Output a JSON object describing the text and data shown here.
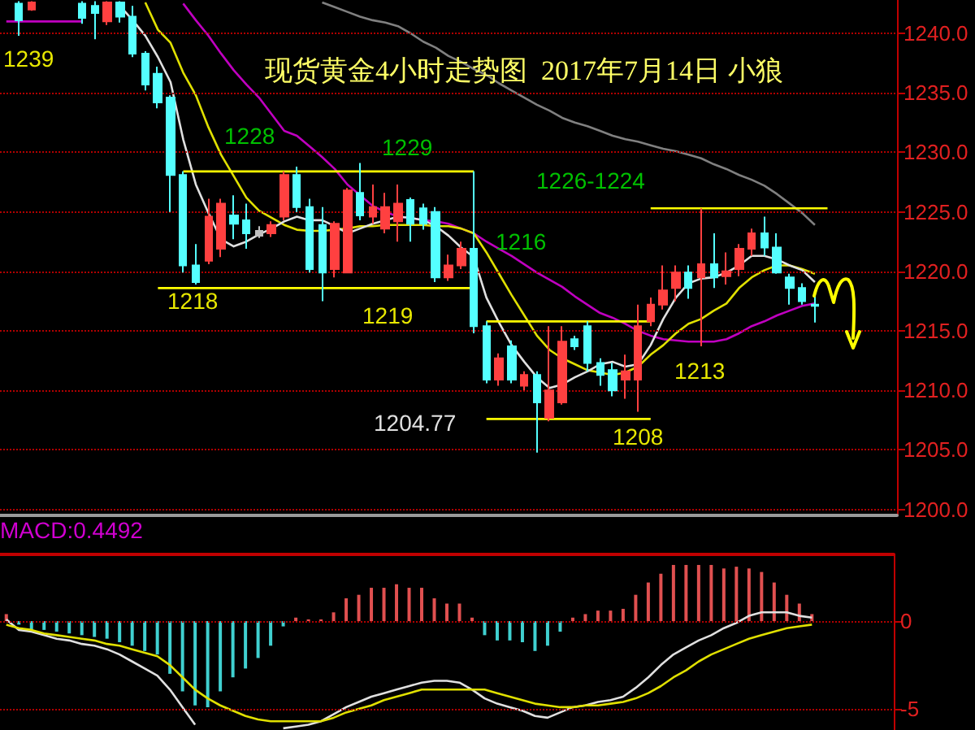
{
  "chart_data": [
    {
      "type": "candlestick",
      "title": "现货黄金4小时走势图  2017年7月14日 小狼",
      "categories": [
        null,
        null,
        null,
        null,
        null,
        null,
        null,
        null,
        null,
        null,
        null,
        null,
        null,
        null,
        null,
        null,
        null,
        null,
        null,
        null,
        null,
        null,
        null,
        null,
        null,
        null,
        null,
        null,
        null,
        null,
        null,
        null,
        null,
        null,
        null,
        null,
        null,
        null,
        null,
        null,
        null,
        null,
        null,
        null,
        null,
        null,
        null,
        null,
        null,
        null,
        null,
        null,
        null,
        null,
        null,
        null,
        null,
        null,
        null,
        null,
        null,
        null,
        null,
        null,
        null,
        null,
        null,
        null,
        null,
        null,
        null
      ],
      "ohlc": [
        null,
        [
          1242.5,
          1242.7,
          1239.8,
          1241.1
        ],
        [
          1242.0,
          1242.7,
          1241.9,
          1242.6
        ],
        null,
        null,
        null,
        [
          1242.5,
          1242.7,
          1240.8,
          1241.3
        ],
        [
          1242.3,
          1242.7,
          1239.5,
          1241.7
        ],
        [
          1241.0,
          1242.7,
          1240.7,
          1242.6
        ],
        [
          1242.6,
          1242.7,
          1240.9,
          1241.4
        ],
        [
          1241.4,
          1242.3,
          1238.0,
          1238.3
        ],
        [
          1238.3,
          1238.5,
          1235.2,
          1235.7
        ],
        [
          1236.6,
          1237.2,
          1233.7,
          1234.2
        ],
        [
          1234.6,
          1234.8,
          1225.0,
          1228.1
        ],
        [
          1228.1,
          1228.4,
          1219.9,
          1220.5
        ],
        [
          1220.5,
          1222.3,
          1218.9,
          1219.1
        ],
        [
          1220.9,
          1226.1,
          1220.6,
          1224.6
        ],
        [
          1221.9,
          1226.1,
          1221.2,
          1225.7
        ],
        [
          1224.7,
          1226.4,
          1222.7,
          1224.0
        ],
        [
          1224.3,
          1225.7,
          1221.9,
          1223.2
        ],
        [
          1223.4,
          1223.8,
          1222.8,
          1223.0
        ],
        [
          1223.2,
          1224.2,
          1222.9,
          1223.9
        ],
        [
          1224.6,
          1228.4,
          1224.3,
          1228.1
        ],
        [
          1228.1,
          1228.8,
          1225.0,
          1225.4
        ],
        [
          1225.4,
          1226.1,
          1219.9,
          1220.2
        ],
        [
          1223.9,
          1225.4,
          1217.5,
          1219.9
        ],
        [
          1220.2,
          1224.2,
          1219.5,
          1224.0
        ],
        [
          1219.9,
          1227.0,
          1219.9,
          1226.8
        ],
        [
          1226.6,
          1229.1,
          1224.3,
          1224.7
        ],
        [
          1224.6,
          1227.3,
          1224.0,
          1225.4
        ],
        [
          1223.6,
          1226.6,
          1223.2,
          1225.4
        ],
        [
          1224.2,
          1227.3,
          1222.5,
          1225.7
        ],
        [
          1226.0,
          1226.2,
          1222.5,
          1224.0
        ],
        [
          1225.3,
          1225.7,
          1223.5,
          1224.0
        ],
        [
          1225.0,
          1225.4,
          1219.1,
          1219.5
        ],
        [
          1219.5,
          1221.4,
          1219.2,
          1220.5
        ],
        [
          1220.5,
          1222.5,
          1220.2,
          1221.9
        ],
        [
          1221.9,
          1228.4,
          1214.8,
          1215.4
        ],
        [
          1215.4,
          1215.8,
          1210.6,
          1210.9
        ],
        [
          1210.9,
          1213.1,
          1210.4,
          1212.7
        ],
        [
          1213.7,
          1214.2,
          1210.6,
          1210.9
        ],
        [
          1210.4,
          1211.6,
          1210.0,
          1211.3
        ],
        [
          1211.3,
          1211.6,
          1204.77,
          1209.0
        ],
        [
          1207.7,
          1215.4,
          1207.4,
          1210.0
        ],
        [
          1209.0,
          1215.4,
          1208.8,
          1214.1
        ],
        [
          1214.3,
          1214.6,
          1213.4,
          1213.7
        ],
        [
          1215.4,
          1215.8,
          1211.6,
          1212.3
        ],
        [
          1212.3,
          1212.7,
          1210.4,
          1211.3
        ],
        [
          1211.7,
          1212.3,
          1209.5,
          1210.0
        ],
        [
          1210.9,
          1213.0,
          1209.3,
          1211.6
        ],
        [
          1210.9,
          1217.2,
          1208.2,
          1215.4
        ],
        [
          1215.8,
          1217.8,
          1215.4,
          1217.2
        ],
        [
          1217.2,
          1220.5,
          1216.8,
          1218.4
        ],
        [
          1218.6,
          1220.5,
          1217.5,
          1219.9
        ],
        [
          1219.9,
          1220.5,
          1217.7,
          1218.6
        ],
        [
          1219.5,
          1225.3,
          1213.7,
          1220.6
        ],
        [
          1220.6,
          1223.2,
          1218.6,
          1219.5
        ],
        [
          1219.6,
          1221.6,
          1218.9,
          1220.0
        ],
        [
          1220.2,
          1222.3,
          1219.6,
          1221.9
        ],
        [
          1221.9,
          1223.6,
          1221.3,
          1223.2
        ],
        [
          1223.2,
          1224.6,
          1221.3,
          1222.0
        ],
        [
          1222.0,
          1223.2,
          1219.8,
          1219.9
        ],
        [
          1219.5,
          1219.8,
          1217.2,
          1218.6
        ],
        [
          1218.6,
          1219.0,
          1217.2,
          1217.5
        ],
        [
          1217.2,
          1217.9,
          1215.7,
          1217.1
        ],
        null,
        null,
        null,
        null,
        null,
        null
      ],
      "colors": [
        null,
        "#54ffff",
        "#ff4040",
        null,
        null,
        null,
        "#54ffff",
        "#54ffff",
        "#ff4040",
        "#54ffff",
        "#54ffff",
        "#54ffff",
        "#54ffff",
        "#54ffff",
        "#54ffff",
        "#54ffff",
        "#ff4040",
        "#ff4040",
        "#54ffff",
        "#54ffff",
        "#c0c0c0",
        "#ff4040",
        "#ff4040",
        "#54ffff",
        "#54ffff",
        "#54ffff",
        "#ff4040",
        "#ff4040",
        "#54ffff",
        "#ff4040",
        "#ff4040",
        "#ff4040",
        "#54ffff",
        "#54ffff",
        "#54ffff",
        "#ff4040",
        "#ff4040",
        "#54ffff",
        "#54ffff",
        "#ff4040",
        "#54ffff",
        "#ff4040",
        "#54ffff",
        "#ff4040",
        "#ff4040",
        "#54ffff",
        "#54ffff",
        "#54ffff",
        "#54ffff",
        "#ff4040",
        "#ff4040",
        "#ff4040",
        "#ff4040",
        "#ff4040",
        "#54ffff",
        "#ff4040",
        "#54ffff",
        "#ff4040",
        "#ff4040",
        "#ff4040",
        "#54ffff",
        "#54ffff",
        "#54ffff",
        "#54ffff",
        "#54ffff",
        null,
        null,
        null,
        null,
        null,
        null
      ],
      "series": [
        {
          "type": "line",
          "color": "#808080",
          "values": [
            null,
            null,
            null,
            null,
            null,
            null,
            null,
            null,
            null,
            null,
            null,
            null,
            null,
            null,
            null,
            null,
            null,
            null,
            null,
            null,
            null,
            null,
            null,
            null,
            null,
            1242.6,
            1242.2,
            1241.8,
            1241.4,
            1241.1,
            1240.9,
            1240.6,
            1240.0,
            1239.3,
            1238.8,
            1238.1,
            1237.6,
            1237.0,
            1236.5,
            1235.8,
            1235.2,
            1234.6,
            1234.0,
            1233.5,
            1232.9,
            1232.5,
            1232.2,
            1231.8,
            1231.4,
            1231.1,
            1230.9,
            1230.6,
            1230.3,
            1230.1,
            1229.8,
            1229.5,
            1229.0,
            1228.6,
            1228.1,
            1227.7,
            1227.2,
            1226.5,
            1225.7,
            1224.9,
            1223.9,
            null,
            null,
            null,
            null,
            null,
            null
          ]
        },
        {
          "type": "line",
          "color": "#c000c0",
          "values": [
            null,
            null,
            null,
            null,
            null,
            null,
            null,
            null,
            null,
            null,
            null,
            null,
            null,
            null,
            1242.5,
            1241.1,
            1239.8,
            1238.3,
            1236.9,
            1235.7,
            1234.6,
            1233.2,
            1231.8,
            1231.4,
            1230.5,
            1229.6,
            1228.6,
            1227.3,
            1226.4,
            1225.5,
            1225.0,
            1224.6,
            1224.5,
            1224.3,
            1224.2,
            1224.0,
            1223.6,
            1223.2,
            1222.5,
            1221.9,
            1221.3,
            1220.6,
            1219.9,
            1219.3,
            1218.7,
            1217.9,
            1217.2,
            1216.5,
            1216.1,
            1215.6,
            1215.0,
            1214.6,
            1214.3,
            1214.2,
            1214.1,
            1214.1,
            1214.1,
            1214.3,
            1214.8,
            1215.4,
            1215.8,
            1216.3,
            1216.7,
            1217.1,
            1217.3,
            null,
            null,
            null,
            null,
            null,
            null
          ]
        },
        {
          "type": "line",
          "color": "#e0e000",
          "values": [
            null,
            null,
            null,
            null,
            null,
            null,
            null,
            null,
            null,
            null,
            null,
            1242.6,
            1240.3,
            1239.2,
            1236.7,
            1234.8,
            1232.1,
            1229.8,
            1228.0,
            1226.2,
            1225.1,
            1224.5,
            1223.9,
            1223.5,
            1223.4,
            1223.4,
            1223.5,
            1223.6,
            1223.8,
            1223.8,
            1223.9,
            1223.9,
            1223.9,
            1223.9,
            1223.8,
            1223.8,
            1223.6,
            1223.2,
            1221.6,
            1219.8,
            1218.0,
            1216.3,
            1214.6,
            1213.4,
            1212.7,
            1212.2,
            1211.7,
            1211.5,
            1211.3,
            1211.5,
            1212.0,
            1213.0,
            1213.8,
            1214.8,
            1215.6,
            1216.0,
            1216.7,
            1217.3,
            1218.6,
            1219.5,
            1220.1,
            1220.5,
            1220.5,
            1220.2,
            1219.8,
            null,
            null,
            null,
            null,
            null,
            null
          ]
        },
        {
          "type": "line",
          "color": "#e0e0e0",
          "values": [
            null,
            null,
            null,
            null,
            null,
            null,
            null,
            null,
            null,
            1242.3,
            1241.1,
            1239.8,
            1238.0,
            1235.9,
            1231.1,
            1227.3,
            1224.9,
            1222.7,
            1222.1,
            1222.5,
            1223.1,
            1223.6,
            1224.2,
            1224.6,
            1224.3,
            1224.3,
            1223.8,
            1223.2,
            1223.6,
            1224.0,
            1224.3,
            1224.6,
            1224.5,
            1224.3,
            1223.8,
            1223.0,
            1222.0,
            1221.2,
            1217.8,
            1215.7,
            1213.8,
            1212.4,
            1211.1,
            1210.2,
            1210.5,
            1211.1,
            1211.6,
            1212.2,
            1212.4,
            1212.0,
            1212.2,
            1213.8,
            1216.0,
            1217.8,
            1219.0,
            1219.4,
            1219.5,
            1219.9,
            1220.5,
            1221.3,
            1221.3,
            1221.0,
            1220.5,
            1220.1,
            1219.1,
            null,
            null,
            null,
            null,
            null,
            null
          ]
        },
        {
          "type": "line",
          "color": "#c000c0",
          "values": [
            1241.0,
            1241.0,
            1241.0,
            1241.0,
            1241.0,
            1241.0,
            1241.0,
            null,
            null,
            null,
            null,
            null,
            null,
            null,
            null,
            null,
            null,
            null,
            null,
            null,
            null,
            null,
            null,
            null,
            null,
            null,
            null,
            null,
            null,
            null,
            null,
            null,
            null,
            null,
            null,
            null,
            null,
            null,
            null,
            null,
            null,
            null,
            null,
            null,
            null,
            null,
            null,
            null,
            null,
            null,
            null,
            null,
            null,
            null,
            null,
            null,
            null,
            null,
            null,
            null,
            null,
            null,
            null,
            null,
            null,
            null,
            null,
            null,
            null,
            null,
            null
          ]
        },
        {
          "type": "line",
          "color": "#ffff00",
          "values": [
            null,
            null,
            null,
            null,
            null,
            null,
            null,
            null,
            null,
            null,
            null,
            null,
            null,
            null,
            1228.4,
            1228.4,
            1228.4,
            1228.4,
            1228.4,
            1228.4,
            1228.4,
            1228.4,
            1228.4,
            1228.4,
            1228.4,
            1228.4,
            1228.4,
            1228.4,
            1228.4,
            1228.4,
            1228.4,
            1228.4,
            1228.4,
            1228.4,
            1228.4,
            1228.4,
            1228.4,
            1228.4,
            null,
            null,
            null,
            null,
            null,
            null,
            null,
            null,
            null,
            null,
            null,
            null,
            null,
            null,
            null,
            null,
            null,
            null,
            null,
            null,
            null,
            null,
            null,
            null,
            null,
            null,
            null,
            null,
            null,
            null,
            null,
            null,
            null
          ]
        },
        {
          "type": "line",
          "color": "#ffff00",
          "values": [
            null,
            null,
            null,
            null,
            null,
            null,
            null,
            null,
            null,
            null,
            null,
            null,
            1218.6,
            1218.6,
            1218.6,
            1218.6,
            1218.6,
            1218.6,
            1218.6,
            1218.6,
            1218.6,
            1218.6,
            1218.6,
            1218.6,
            1218.6,
            1218.6,
            1218.6,
            1218.6,
            1218.6,
            1218.6,
            1218.6,
            1218.6,
            1218.6,
            1218.6,
            1218.6,
            1218.6,
            1218.6,
            1218.6,
            null,
            null,
            null,
            null,
            null,
            null,
            null,
            null,
            null,
            null,
            null,
            null,
            null,
            null,
            null,
            null,
            null,
            null,
            null,
            null,
            null,
            null,
            null,
            null,
            null,
            null,
            null,
            null,
            null,
            null,
            null,
            null,
            null
          ]
        },
        {
          "type": "line",
          "color": "#ffff00",
          "values": [
            null,
            null,
            null,
            null,
            null,
            null,
            null,
            null,
            null,
            null,
            null,
            null,
            null,
            null,
            null,
            null,
            null,
            null,
            null,
            null,
            null,
            null,
            null,
            null,
            null,
            null,
            null,
            null,
            null,
            null,
            null,
            null,
            null,
            null,
            null,
            null,
            null,
            null,
            1215.8,
            1215.8,
            1215.8,
            1215.8,
            1215.8,
            1215.8,
            1215.8,
            1215.8,
            1215.8,
            1215.8,
            1215.8,
            1215.8,
            1215.8,
            1215.8,
            null,
            null,
            null,
            null,
            null,
            null,
            null,
            null,
            null,
            null,
            null,
            null,
            null,
            null,
            null,
            null,
            null,
            null,
            null
          ]
        },
        {
          "type": "line",
          "color": "#ffff00",
          "values": [
            null,
            null,
            null,
            null,
            null,
            null,
            null,
            null,
            null,
            null,
            null,
            null,
            null,
            null,
            null,
            null,
            null,
            null,
            null,
            null,
            null,
            null,
            null,
            null,
            null,
            null,
            null,
            null,
            null,
            null,
            null,
            null,
            null,
            null,
            null,
            null,
            null,
            null,
            1207.6,
            1207.6,
            1207.6,
            1207.6,
            1207.6,
            1207.6,
            1207.6,
            1207.6,
            1207.6,
            1207.6,
            1207.6,
            1207.6,
            1207.6,
            1207.6,
            null,
            null,
            null,
            null,
            null,
            null,
            null,
            null,
            null,
            null,
            null,
            null,
            null,
            null,
            null,
            null,
            null,
            null,
            null
          ]
        },
        {
          "type": "line",
          "color": "#ffff00",
          "values": [
            null,
            null,
            null,
            null,
            null,
            null,
            null,
            null,
            null,
            null,
            null,
            null,
            null,
            null,
            null,
            null,
            null,
            null,
            null,
            null,
            null,
            null,
            null,
            null,
            null,
            null,
            null,
            null,
            null,
            null,
            null,
            null,
            null,
            null,
            null,
            null,
            null,
            null,
            null,
            null,
            null,
            null,
            null,
            null,
            null,
            null,
            null,
            null,
            null,
            null,
            null,
            1225.3,
            1225.3,
            1225.3,
            1225.3,
            1225.3,
            1225.3,
            1225.3,
            1225.3,
            1225.3,
            1225.3,
            1225.3,
            1225.3,
            1225.3,
            1225.3,
            1225.3,
            null,
            null,
            null,
            null,
            null
          ]
        }
      ],
      "ylim": [
        1199.5,
        1242.8
      ],
      "yticks": [
        {
          "value": 1200,
          "label": "1200.0"
        },
        {
          "value": 1205,
          "label": "1205.0"
        },
        {
          "value": 1210,
          "label": "1210.0"
        },
        {
          "value": 1215,
          "label": "1215.0"
        },
        {
          "value": 1220,
          "label": "1220.0"
        },
        {
          "value": 1225,
          "label": "1225.0"
        },
        {
          "value": 1230,
          "label": "1230.0"
        },
        {
          "value": 1235,
          "label": "1235.0"
        },
        {
          "value": 1240,
          "label": "1240.0"
        }
      ],
      "grid": "y",
      "tick_labels": "y",
      "marker": "none",
      "annotations": [
        "1239",
        {
          "text": "1228",
          "y": 1228.4
        },
        {
          "text": "1229",
          "y": 1228.4
        },
        {
          "text": "1218",
          "y": 1218.6
        },
        {
          "text": "1219",
          "y": 1218.6
        },
        {
          "text": "1216",
          "y": 1215.8
        },
        {
          "text": "1213",
          "y": 1213.7
        },
        {
          "text": "1208",
          "y": 1207.6
        },
        "1204.77",
        "1226-1224"
      ]
    },
    {
      "type": "bar",
      "categories": [
        null,
        null,
        null,
        null,
        null,
        null,
        null,
        null,
        null,
        null,
        null,
        null,
        null,
        null,
        null,
        null,
        null,
        null,
        null,
        null,
        null,
        null,
        null,
        null,
        null,
        null,
        null,
        null,
        null,
        null,
        null,
        null,
        null,
        null,
        null,
        null,
        null,
        null,
        null,
        null,
        null,
        null,
        null,
        null,
        null,
        null,
        null,
        null,
        null,
        null,
        null,
        null,
        null,
        null,
        null,
        null,
        null,
        null,
        null,
        null,
        null,
        null,
        null,
        null,
        null,
        null,
        null,
        null,
        null,
        null,
        null
      ],
      "series": [
        {
          "type": "bar",
          "values": [
            0.4,
            -0.2,
            -0.5,
            -0.5,
            -0.6,
            -0.7,
            -0.8,
            -0.9,
            -1.0,
            -1.2,
            -1.4,
            -1.7,
            -1.9,
            -3.0,
            -4.0,
            -4.8,
            -4.9,
            -4.0,
            -3.2,
            -2.7,
            -2.1,
            -1.4,
            -0.3,
            0.2,
            0.1,
            0.1,
            0.5,
            1.3,
            1.5,
            1.9,
            1.9,
            2.1,
            1.9,
            1.9,
            1.3,
            1.0,
            1.0,
            0.2,
            -0.8,
            -1.1,
            -1.1,
            -1.2,
            -1.7,
            -1.4,
            -0.6,
            0.2,
            0.4,
            0.6,
            0.6,
            0.7,
            1.5,
            2.2,
            2.7,
            3.2,
            3.2,
            3.2,
            3.2,
            3.0,
            3.1,
            3.0,
            2.8,
            2.2,
            1.5,
            1.0,
            0.4,
            null,
            null,
            null,
            null,
            null,
            null
          ],
          "colors": [
            "#e05050",
            "#40d0d0",
            "#40d0d0",
            "#40d0d0",
            "#40d0d0",
            "#40d0d0",
            "#40d0d0",
            "#40d0d0",
            "#40d0d0",
            "#40d0d0",
            "#40d0d0",
            "#40d0d0",
            "#40d0d0",
            "#40d0d0",
            "#40d0d0",
            "#40d0d0",
            "#40d0d0",
            "#40d0d0",
            "#40d0d0",
            "#40d0d0",
            "#40d0d0",
            "#40d0d0",
            "#40d0d0",
            "#e05050",
            "#e05050",
            "#e05050",
            "#e05050",
            "#e05050",
            "#e05050",
            "#e05050",
            "#e05050",
            "#e05050",
            "#e05050",
            "#e05050",
            "#e05050",
            "#e05050",
            "#e05050",
            "#e05050",
            "#40d0d0",
            "#40d0d0",
            "#40d0d0",
            "#40d0d0",
            "#40d0d0",
            "#40d0d0",
            "#40d0d0",
            "#e05050",
            "#e05050",
            "#e05050",
            "#e05050",
            "#e05050",
            "#e05050",
            "#e05050",
            "#e05050",
            "#e05050",
            "#e05050",
            "#e05050",
            "#e05050",
            "#e05050",
            "#e05050",
            "#e05050",
            "#e05050",
            "#e05050",
            "#e05050",
            "#e05050",
            "#e05050",
            null,
            null,
            null,
            null,
            null,
            null
          ]
        },
        {
          "type": "line",
          "color": "#e0e0e0",
          "values": [
            0.1,
            -0.5,
            -0.6,
            -0.8,
            -1.0,
            -1.1,
            -1.3,
            -1.4,
            -1.6,
            -1.9,
            -2.3,
            -2.7,
            -3.1,
            -3.9,
            -4.9,
            -5.9,
            null,
            null,
            null,
            null,
            null,
            null,
            -6.1,
            -6.0,
            -5.9,
            -5.7,
            -5.3,
            -4.9,
            -4.6,
            -4.3,
            -4.1,
            -3.9,
            -3.7,
            -3.5,
            -3.4,
            -3.4,
            -3.5,
            -3.9,
            -4.4,
            -4.7,
            -4.9,
            -5.1,
            -5.4,
            -5.5,
            -5.2,
            -4.9,
            -4.8,
            -4.6,
            -4.5,
            -4.3,
            -3.8,
            -3.2,
            -2.5,
            -1.9,
            -1.5,
            -1.1,
            -0.8,
            -0.4,
            -0.1,
            0.3,
            0.5,
            0.5,
            0.5,
            0.3,
            0.2,
            null,
            null,
            null,
            null,
            null,
            null
          ]
        },
        {
          "type": "line",
          "color": "#e0e000",
          "values": [
            -0.2,
            -0.4,
            -0.5,
            -0.7,
            -0.8,
            -0.9,
            -1.0,
            -1.1,
            -1.3,
            -1.4,
            -1.6,
            -1.8,
            -2.0,
            -2.5,
            -3.2,
            -3.9,
            -4.4,
            -4.8,
            -5.1,
            -5.4,
            -5.6,
            -5.7,
            -5.7,
            -5.7,
            -5.7,
            -5.7,
            -5.5,
            -5.2,
            -5.0,
            -4.8,
            -4.5,
            -4.3,
            -4.1,
            -3.9,
            -3.9,
            -3.9,
            -3.9,
            -3.9,
            -3.9,
            -4.1,
            -4.3,
            -4.5,
            -4.7,
            -4.8,
            -4.9,
            -4.9,
            -4.8,
            -4.8,
            -4.7,
            -4.6,
            -4.4,
            -4.1,
            -3.7,
            -3.2,
            -2.8,
            -2.3,
            -1.9,
            -1.6,
            -1.3,
            -1.0,
            -0.8,
            -0.6,
            -0.4,
            -0.3,
            -0.2,
            null,
            null,
            null,
            null,
            null,
            null
          ]
        }
      ],
      "ylim": [
        -6.2,
        3.8
      ],
      "yticks": [
        0,
        -5
      ],
      "grid": "y",
      "tick_labels": "y",
      "marker": "none",
      "annotations": [
        "MACD:0.4492"
      ]
    }
  ]
}
